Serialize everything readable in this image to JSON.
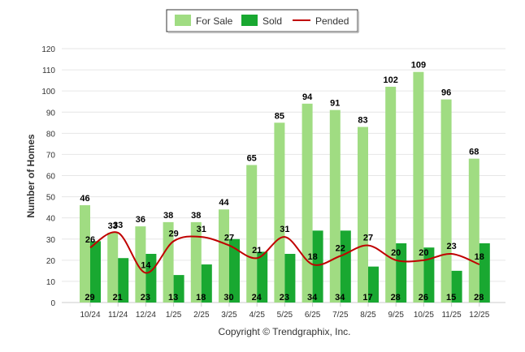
{
  "chart_data": {
    "type": "bar",
    "title": "",
    "xlabel": "",
    "ylabel": "Number of Homes",
    "ylim": [
      0,
      120
    ],
    "yticks": [
      0,
      10,
      20,
      30,
      40,
      50,
      60,
      70,
      80,
      90,
      100,
      110,
      120
    ],
    "grid": true,
    "legend_position": "top-center",
    "categories": [
      "10/24",
      "11/24",
      "12/24",
      "1/25",
      "2/25",
      "3/25",
      "4/25",
      "5/25",
      "6/25",
      "7/25",
      "8/25",
      "9/25",
      "10/25",
      "11/25",
      "12/25"
    ],
    "series": [
      {
        "name": "For Sale",
        "kind": "bar",
        "color": "#a0dc82",
        "values": [
          46,
          33,
          36,
          38,
          38,
          44,
          65,
          85,
          94,
          91,
          83,
          102,
          109,
          96,
          68
        ]
      },
      {
        "name": "Sold",
        "kind": "bar",
        "color": "#19a831",
        "values": [
          29,
          21,
          23,
          13,
          18,
          30,
          24,
          23,
          34,
          34,
          17,
          28,
          26,
          15,
          28
        ]
      },
      {
        "name": "Pended",
        "kind": "line",
        "color": "#c00000",
        "values": [
          26,
          33,
          14,
          29,
          31,
          27,
          21,
          31,
          18,
          22,
          27,
          20,
          20,
          23,
          18
        ]
      }
    ],
    "copyright": "Copyright © Trendgraphix, Inc."
  }
}
